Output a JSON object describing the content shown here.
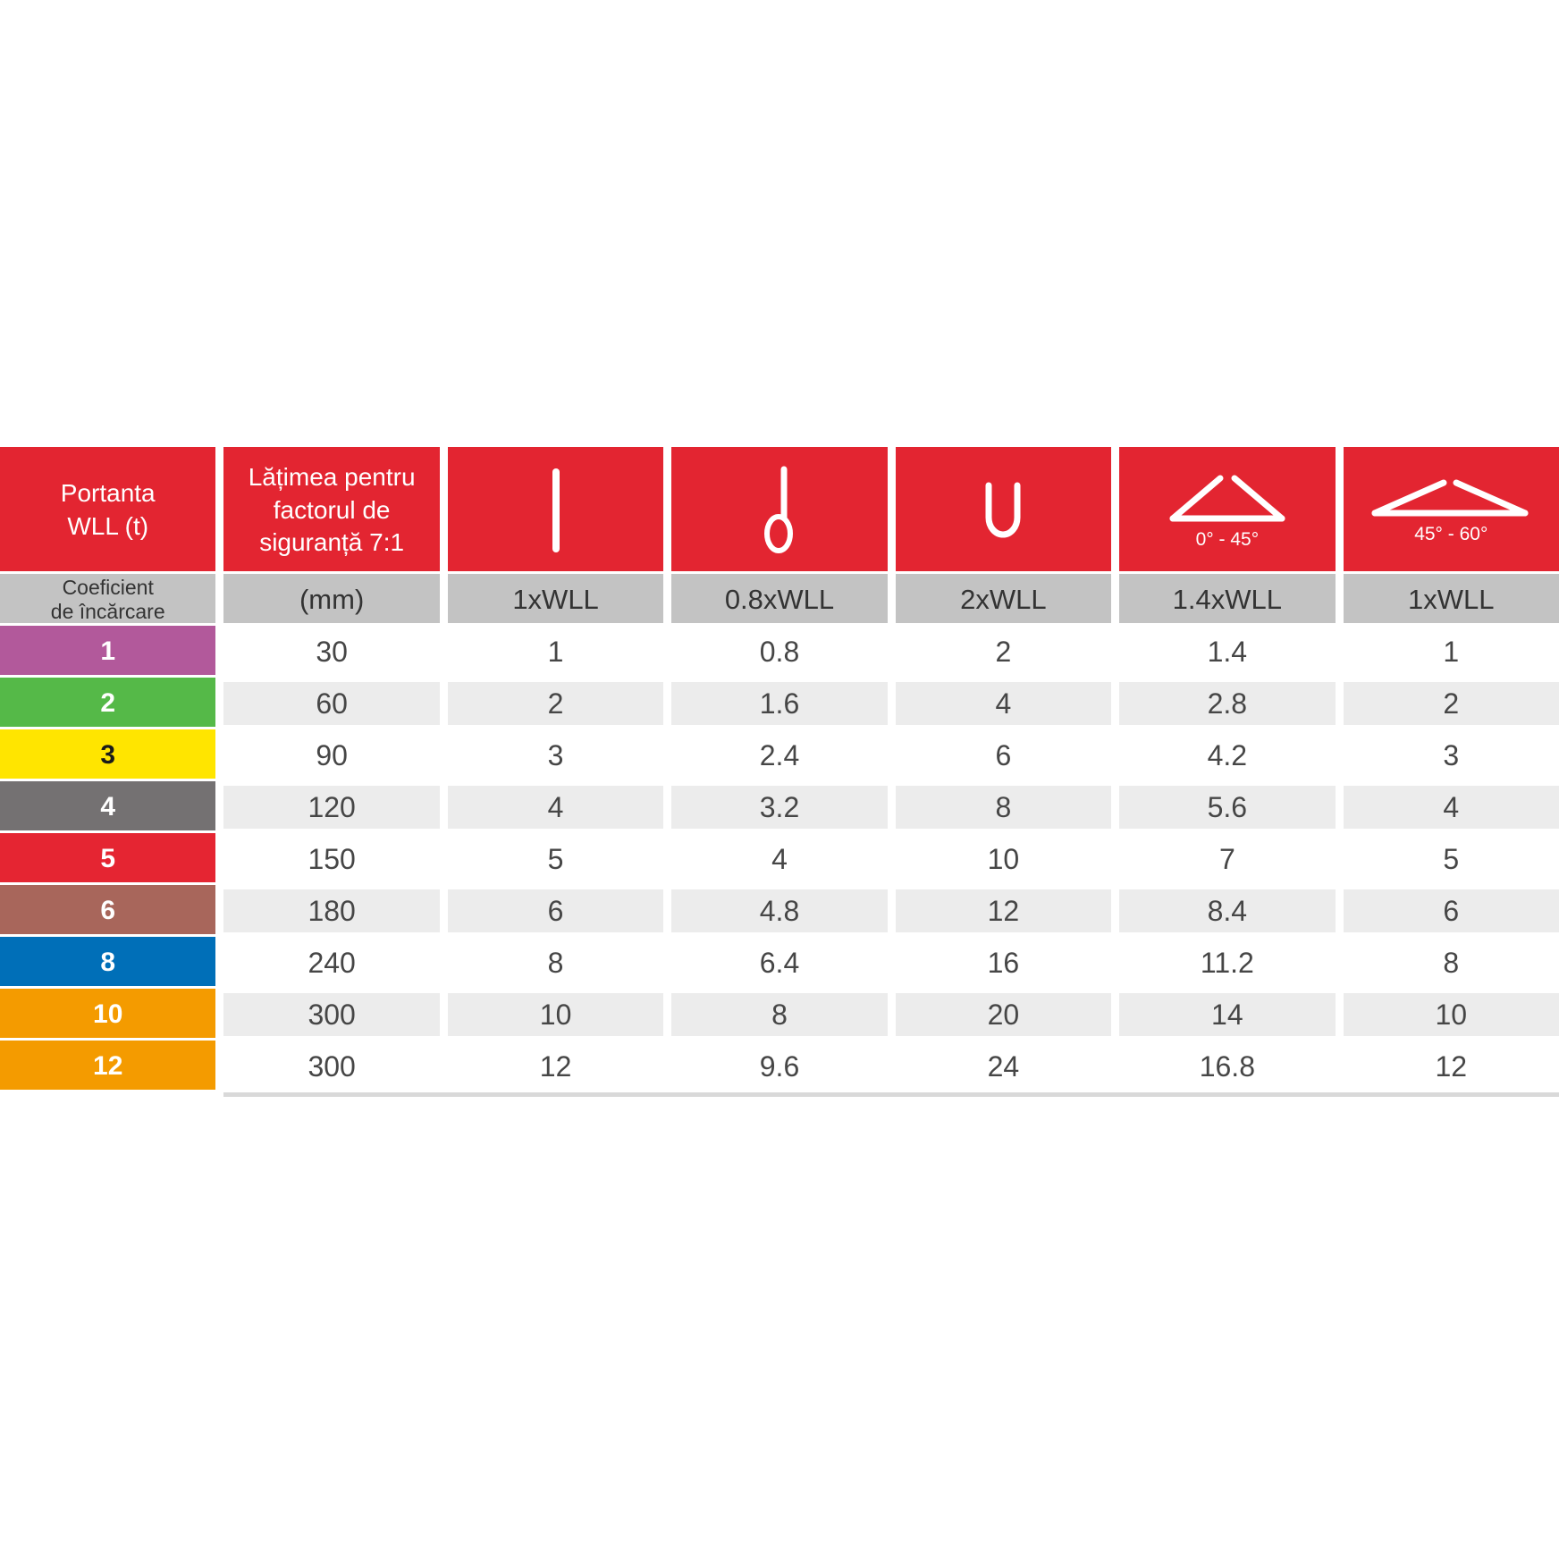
{
  "page": {
    "background": "#ffffff"
  },
  "table": {
    "colors": {
      "header_red": "#e32531",
      "subheader_gray": "#c3c3c3",
      "subheader_text": "#333333",
      "alt_row_gray": "#ececec",
      "data_text": "#464646",
      "bottom_strip": "#d9d9d9",
      "icon_white": "#ffffff"
    },
    "header": {
      "portanta": "Portanta\nWLL (t)",
      "latimea": "Lățimea pentru\nfactorul de\nsiguranță 7:1",
      "icons": [
        "vertical-hitch-icon",
        "choke-hitch-icon",
        "basket-hitch-icon",
        "two-leg-sling-0-45-icon",
        "two-leg-sling-45-60-icon"
      ],
      "angle45_caption": "0° - 45°",
      "angle60_caption": "45° - 60°"
    },
    "subheader": [
      "Coeficient\nde încărcare",
      "(mm)",
      "1xWLL",
      "0.8xWLL",
      "2xWLL",
      "1.4xWLL",
      "1xWLL"
    ],
    "rows": [
      {
        "label": "1",
        "color": "#b2599b",
        "text_color": "#ffffff",
        "values": [
          "30",
          "1",
          "0.8",
          "2",
          "1.4",
          "1"
        ]
      },
      {
        "label": "2",
        "color": "#55b948",
        "text_color": "#ffffff",
        "values": [
          "60",
          "2",
          "1.6",
          "4",
          "2.8",
          "2"
        ]
      },
      {
        "label": "3",
        "color": "#ffe500",
        "text_color": "#1a1a1a",
        "values": [
          "90",
          "3",
          "2.4",
          "6",
          "4.2",
          "3"
        ]
      },
      {
        "label": "4",
        "color": "#747172",
        "text_color": "#ffffff",
        "values": [
          "120",
          "4",
          "3.2",
          "8",
          "5.6",
          "4"
        ]
      },
      {
        "label": "5",
        "color": "#e52532",
        "text_color": "#ffffff",
        "values": [
          "150",
          "5",
          "4",
          "10",
          "7",
          "5"
        ]
      },
      {
        "label": "6",
        "color": "#a8665b",
        "text_color": "#ffffff",
        "values": [
          "180",
          "6",
          "4.8",
          "12",
          "8.4",
          "6"
        ]
      },
      {
        "label": "8",
        "color": "#006fb8",
        "text_color": "#ffffff",
        "values": [
          "240",
          "8",
          "6.4",
          "16",
          "11.2",
          "8"
        ]
      },
      {
        "label": "10",
        "color": "#f49b00",
        "text_color": "#ffffff",
        "values": [
          "300",
          "10",
          "8",
          "20",
          "14",
          "10"
        ]
      },
      {
        "label": "12",
        "color": "#f49b00",
        "text_color": "#ffffff",
        "values": [
          "300",
          "12",
          "9.6",
          "24",
          "16.8",
          "12"
        ]
      }
    ]
  }
}
